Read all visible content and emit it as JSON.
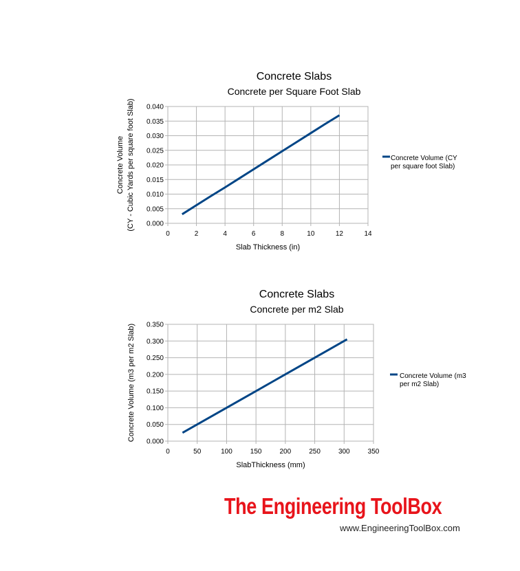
{
  "chart_data": [
    {
      "type": "line",
      "title": "Concrete Slabs",
      "subtitle": "Concrete per Square Foot Slab",
      "xlabel": "Slab Thickness (in)",
      "ylabel_lines": [
        "Concrete Volume",
        "(CY - Cubic Yards per square foot Slab)"
      ],
      "xlim": [
        0,
        14
      ],
      "ylim": [
        0,
        0.04
      ],
      "xticks": [
        0,
        2,
        4,
        6,
        8,
        10,
        12,
        14
      ],
      "xtick_labels": [
        "0",
        "2",
        "4",
        "6",
        "8",
        "10",
        "12",
        "14"
      ],
      "yticks": [
        0,
        0.005,
        0.01,
        0.015,
        0.02,
        0.025,
        0.03,
        0.035,
        0.04
      ],
      "ytick_labels": [
        "0.000",
        "0.005",
        "0.010",
        "0.015",
        "0.020",
        "0.025",
        "0.030",
        "0.035",
        "0.040"
      ],
      "grid": true,
      "legend_position": "right",
      "series": [
        {
          "name_lines": [
            "Concrete Volume (CY",
            "per square foot Slab)"
          ],
          "color": "#004586",
          "x": [
            1,
            2,
            3,
            4,
            5,
            6,
            7,
            8,
            9,
            10,
            11,
            12
          ],
          "y": [
            0.0031,
            0.0062,
            0.0093,
            0.0123,
            0.0154,
            0.0185,
            0.0216,
            0.0247,
            0.0278,
            0.0309,
            0.034,
            0.037
          ]
        }
      ]
    },
    {
      "type": "line",
      "title": "Concrete Slabs",
      "subtitle": "Concrete per m2 Slab",
      "xlabel": "SlabThickness (mm)",
      "ylabel_lines": [
        "Concrete Volume (m3 per m2 Slab)"
      ],
      "xlim": [
        0,
        350
      ],
      "ylim": [
        0,
        0.35
      ],
      "xticks": [
        0,
        50,
        100,
        150,
        200,
        250,
        300,
        350
      ],
      "xtick_labels": [
        "0",
        "50",
        "100",
        "150",
        "200",
        "250",
        "300",
        "350"
      ],
      "yticks": [
        0,
        0.05,
        0.1,
        0.15,
        0.2,
        0.25,
        0.3,
        0.35
      ],
      "ytick_labels": [
        "0.000",
        "0.050",
        "0.100",
        "0.150",
        "0.200",
        "0.250",
        "0.300",
        "0.350"
      ],
      "grid": true,
      "legend_position": "right",
      "series": [
        {
          "name_lines": [
            "Concrete Volume (m3",
            "per m2 Slab)"
          ],
          "color": "#004586",
          "x": [
            25,
            50,
            75,
            100,
            125,
            150,
            175,
            200,
            225,
            250,
            275,
            305
          ],
          "y": [
            0.025,
            0.05,
            0.075,
            0.1,
            0.125,
            0.15,
            0.175,
            0.2,
            0.225,
            0.25,
            0.275,
            0.305
          ]
        }
      ]
    }
  ],
  "branding": {
    "logo_text": "The Engineering ToolBox",
    "url": "www.EngineeringToolBox.com",
    "logo_color": "#e8141b"
  }
}
